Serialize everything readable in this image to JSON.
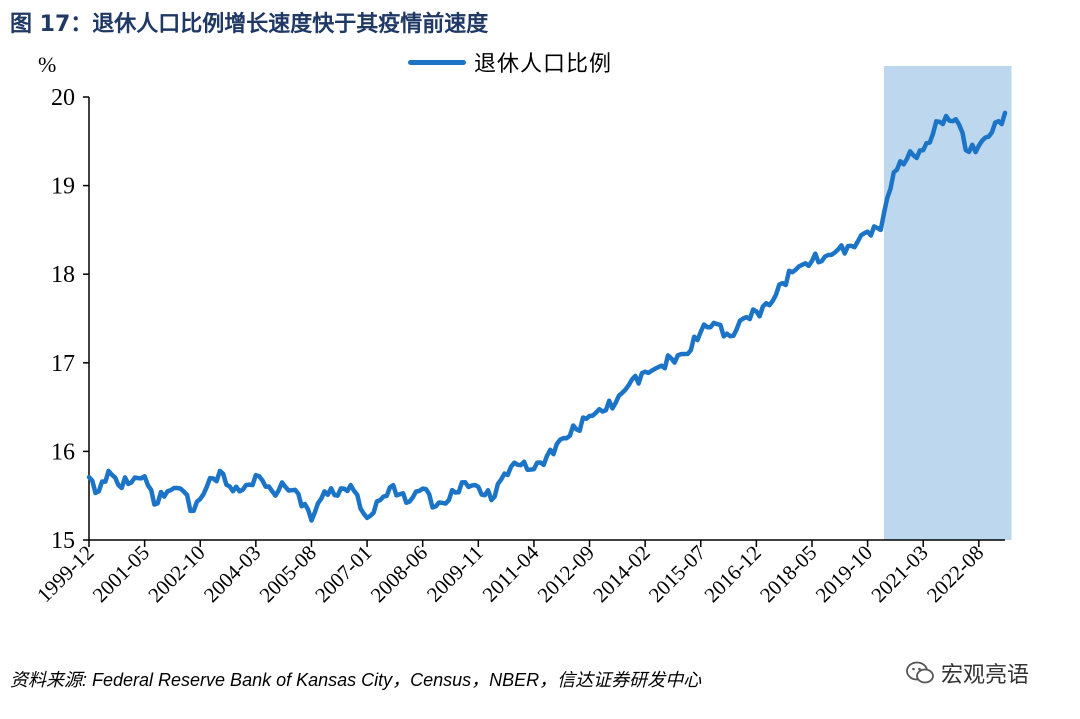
{
  "figure_title": "图 17：退休人口比例增长速度快于其疫情前速度",
  "source_text": "资料来源: Federal Reserve Bank of Kansas City，Census，NBER，信达证券研发中心",
  "watermark": "宏观亮语",
  "colors": {
    "series": "#1c74c7",
    "shade": "#bdd7ee",
    "title": "#1f3864",
    "axis": "#000000"
  },
  "chart_data": {
    "type": "line",
    "title": "",
    "ylabel": "%",
    "xlabel": "",
    "ylim": [
      15,
      20
    ],
    "yticks": [
      15,
      16,
      17,
      18,
      19,
      20
    ],
    "x_start": "1999-12",
    "x_end": "2023-04",
    "xtick_labels": [
      "1999-12",
      "2001-05",
      "2002-10",
      "2004-03",
      "2005-08",
      "2007-01",
      "2008-06",
      "2009-11",
      "2011-04",
      "2012-09",
      "2014-02",
      "2015-07",
      "2016-12",
      "2018-05",
      "2019-10",
      "2021-03",
      "2022-08"
    ],
    "legend": [
      "退休人口比例"
    ],
    "shaded_region": {
      "from": "2020-03",
      "to": "2023-06"
    },
    "series": [
      {
        "name": "退休人口比例",
        "anchors": [
          [
            "1999-12",
            15.71
          ],
          [
            "2000-03",
            15.55
          ],
          [
            "2000-06",
            15.78
          ],
          [
            "2000-09",
            15.62
          ],
          [
            "2001-01",
            15.65
          ],
          [
            "2001-05",
            15.72
          ],
          [
            "2001-08",
            15.4
          ],
          [
            "2001-12",
            15.55
          ],
          [
            "2002-04",
            15.58
          ],
          [
            "2002-08",
            15.33
          ],
          [
            "2002-12",
            15.6
          ],
          [
            "2003-04",
            15.78
          ],
          [
            "2003-08",
            15.55
          ],
          [
            "2003-12",
            15.62
          ],
          [
            "2004-04",
            15.72
          ],
          [
            "2004-08",
            15.55
          ],
          [
            "2004-12",
            15.6
          ],
          [
            "2005-04",
            15.52
          ],
          [
            "2005-08",
            15.22
          ],
          [
            "2005-12",
            15.55
          ],
          [
            "2006-04",
            15.5
          ],
          [
            "2006-08",
            15.62
          ],
          [
            "2007-01",
            15.25
          ],
          [
            "2007-05",
            15.45
          ],
          [
            "2007-09",
            15.62
          ],
          [
            "2008-01",
            15.42
          ],
          [
            "2008-06",
            15.58
          ],
          [
            "2008-10",
            15.38
          ],
          [
            "2009-02",
            15.45
          ],
          [
            "2009-06",
            15.65
          ],
          [
            "2009-11",
            15.6
          ],
          [
            "2010-03",
            15.45
          ],
          [
            "2010-07",
            15.75
          ],
          [
            "2010-11",
            15.85
          ],
          [
            "2011-04",
            15.8
          ],
          [
            "2011-08",
            15.95
          ],
          [
            "2012-01",
            16.15
          ],
          [
            "2012-05",
            16.25
          ],
          [
            "2012-09",
            16.4
          ],
          [
            "2013-01",
            16.45
          ],
          [
            "2013-05",
            16.55
          ],
          [
            "2013-09",
            16.75
          ],
          [
            "2014-02",
            16.9
          ],
          [
            "2014-06",
            16.95
          ],
          [
            "2014-10",
            17.05
          ],
          [
            "2015-03",
            17.1
          ],
          [
            "2015-07",
            17.35
          ],
          [
            "2015-11",
            17.45
          ],
          [
            "2016-04",
            17.3
          ],
          [
            "2016-08",
            17.5
          ],
          [
            "2016-12",
            17.58
          ],
          [
            "2017-04",
            17.65
          ],
          [
            "2017-08",
            17.9
          ],
          [
            "2017-12",
            18.05
          ],
          [
            "2018-05",
            18.15
          ],
          [
            "2018-09",
            18.2
          ],
          [
            "2019-01",
            18.28
          ],
          [
            "2019-05",
            18.32
          ],
          [
            "2019-10",
            18.48
          ],
          [
            "2020-02",
            18.5
          ],
          [
            "2020-06",
            19.15
          ],
          [
            "2020-10",
            19.3
          ],
          [
            "2021-03",
            19.4
          ],
          [
            "2021-08",
            19.72
          ],
          [
            "2022-01",
            19.75
          ],
          [
            "2022-05",
            19.38
          ],
          [
            "2022-08",
            19.45
          ],
          [
            "2022-12",
            19.6
          ],
          [
            "2023-04",
            19.82
          ]
        ]
      }
    ]
  }
}
